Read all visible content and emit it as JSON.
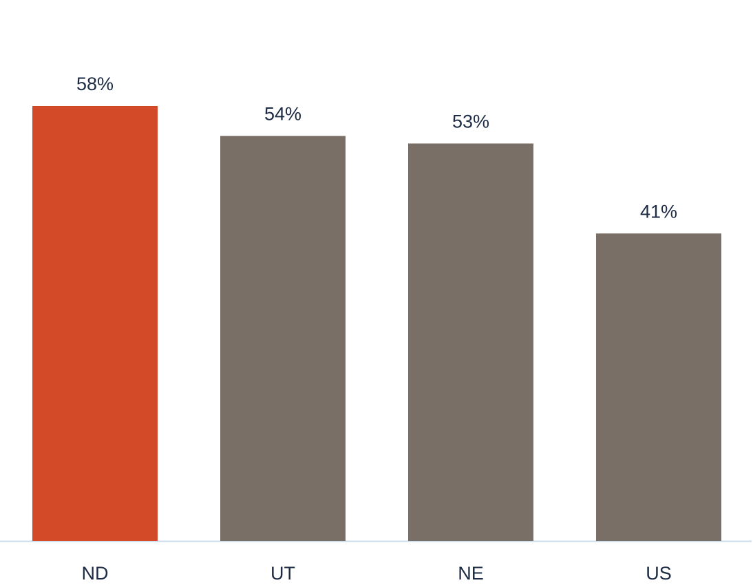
{
  "chart_data": {
    "type": "bar",
    "categories": [
      "ND",
      "UT",
      "NE",
      "US"
    ],
    "values": [
      58,
      54,
      53,
      41
    ],
    "value_labels": [
      "58%",
      "54%",
      "53%",
      "41%"
    ],
    "colors": [
      "#d24a27",
      "#7a6f66",
      "#7a6f66",
      "#7a6f66"
    ]
  }
}
